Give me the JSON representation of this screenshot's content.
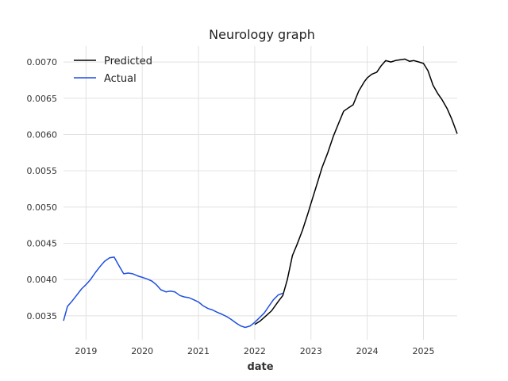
{
  "chart_data": {
    "type": "line",
    "title": "Neurology graph",
    "xlabel": "date",
    "ylabel": "",
    "xlim": [
      2018.6,
      2025.6
    ],
    "ylim": [
      0.00317,
      0.00722
    ],
    "x_ticks": [
      2019,
      2020,
      2021,
      2022,
      2023,
      2024,
      2025
    ],
    "x_tick_labels": [
      "2019",
      "2020",
      "2021",
      "2022",
      "2023",
      "2024",
      "2025"
    ],
    "y_ticks": [
      0.0035,
      0.004,
      0.0045,
      0.005,
      0.0055,
      0.006,
      0.0065,
      0.007
    ],
    "y_tick_labels": [
      "0.0035",
      "0.0040",
      "0.0045",
      "0.0050",
      "0.0055",
      "0.0060",
      "0.0065",
      "0.0070"
    ],
    "grid": true,
    "legend_position": "top-left",
    "series": [
      {
        "name": "Predicted",
        "color": "#000000",
        "x": [
          2022.0,
          2022.1,
          2022.2,
          2022.3,
          2022.42,
          2022.5,
          2022.58,
          2022.67,
          2022.75,
          2022.85,
          2022.95,
          2023.0,
          2023.1,
          2023.2,
          2023.3,
          2023.4,
          2023.5,
          2023.58,
          2023.67,
          2023.75,
          2023.85,
          2023.95,
          2024.0,
          2024.08,
          2024.17,
          2024.25,
          2024.33,
          2024.42,
          2024.5,
          2024.58,
          2024.67,
          2024.75,
          2024.83,
          2024.92,
          2025.0,
          2025.08,
          2025.17,
          2025.25,
          2025.33,
          2025.42,
          2025.5,
          2025.6
        ],
        "y": [
          0.00338,
          0.00343,
          0.0035,
          0.00357,
          0.0037,
          0.00378,
          0.004,
          0.00433,
          0.00448,
          0.00468,
          0.00492,
          0.00505,
          0.0053,
          0.00555,
          0.00575,
          0.00598,
          0.00617,
          0.00632,
          0.00637,
          0.00641,
          0.0066,
          0.00673,
          0.00678,
          0.00683,
          0.00686,
          0.00695,
          0.00702,
          0.007,
          0.00702,
          0.00703,
          0.00704,
          0.00701,
          0.00702,
          0.007,
          0.00698,
          0.00688,
          0.00668,
          0.00657,
          0.00648,
          0.00636,
          0.00622,
          0.00601
        ]
      },
      {
        "name": "Actual",
        "color": "#1f4fe0",
        "x": [
          2018.6,
          2018.67,
          2018.75,
          2018.83,
          2018.92,
          2019.0,
          2019.08,
          2019.17,
          2019.25,
          2019.33,
          2019.42,
          2019.5,
          2019.58,
          2019.67,
          2019.75,
          2019.83,
          2019.92,
          2020.0,
          2020.08,
          2020.17,
          2020.25,
          2020.33,
          2020.42,
          2020.5,
          2020.58,
          2020.67,
          2020.75,
          2020.83,
          2020.92,
          2021.0,
          2021.08,
          2021.17,
          2021.25,
          2021.33,
          2021.42,
          2021.5,
          2021.58,
          2021.67,
          2021.75,
          2021.83,
          2021.92,
          2022.0,
          2022.08,
          2022.17,
          2022.25,
          2022.33,
          2022.42,
          2022.5
        ],
        "y": [
          0.00343,
          0.00363,
          0.0037,
          0.00378,
          0.00387,
          0.00393,
          0.004,
          0.0041,
          0.00418,
          0.00425,
          0.0043,
          0.00431,
          0.0042,
          0.00408,
          0.00409,
          0.00408,
          0.00405,
          0.00403,
          0.00401,
          0.00398,
          0.00393,
          0.00386,
          0.00383,
          0.00384,
          0.00383,
          0.00378,
          0.00376,
          0.00375,
          0.00372,
          0.00369,
          0.00364,
          0.0036,
          0.00358,
          0.00355,
          0.00352,
          0.00349,
          0.00345,
          0.0034,
          0.00336,
          0.00334,
          0.00336,
          0.00341,
          0.00347,
          0.00354,
          0.00363,
          0.00372,
          0.00379,
          0.00381
        ]
      }
    ]
  }
}
